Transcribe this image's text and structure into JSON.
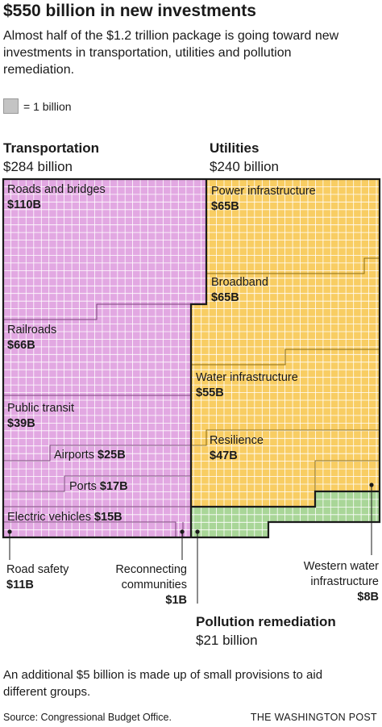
{
  "title": "$550 billion in new investments",
  "subtitle": "Almost half of the $1.2 trillion package is going toward new investments in transportation, utilities and pollution remediation.",
  "legend_text": "= 1 billion",
  "footnote": "An additional $5 billion is made up of small provisions to aid different groups.",
  "source": "Source: Congressional Budget Office.",
  "brand": "THE WASHINGTON POST",
  "colors": {
    "transportation": "#e2a8e2",
    "utilities": "#f8cd63",
    "pollution": "#a9d698",
    "grid": "#ffffff",
    "border": "#1a1a1a"
  },
  "chart_data": {
    "type": "waffle",
    "unit": "1 billion",
    "groups": [
      {
        "id": "transportation",
        "name": "Transportation",
        "total_label": "$284 billion",
        "total": 284,
        "items": [
          {
            "name": "Roads and bridges",
            "value_label": "$110B",
            "value": 110
          },
          {
            "name": "Railroads",
            "value_label": "$66B",
            "value": 66
          },
          {
            "name": "Public transit",
            "value_label": "$39B",
            "value": 39
          },
          {
            "name": "Airports",
            "value_label": "$25B",
            "value": 25
          },
          {
            "name": "Ports",
            "value_label": "$17B",
            "value": 17
          },
          {
            "name": "Electric vehicles",
            "value_label": "$15B",
            "value": 15
          },
          {
            "name": "Road safety",
            "value_label": "$11B",
            "value": 11
          },
          {
            "name": "Reconnecting communities",
            "value_label": "$1B",
            "value": 1
          }
        ]
      },
      {
        "id": "utilities",
        "name": "Utilities",
        "total_label": "$240 billion",
        "total": 240,
        "items": [
          {
            "name": "Power infrastructure",
            "value_label": "$65B",
            "value": 65
          },
          {
            "name": "Broadband",
            "value_label": "$65B",
            "value": 65
          },
          {
            "name": "Water infrastructure",
            "value_label": "$55B",
            "value": 55
          },
          {
            "name": "Resilience",
            "value_label": "$47B",
            "value": 47
          },
          {
            "name": "Western water infrastructure",
            "value_label": "$8B",
            "value": 8
          }
        ]
      },
      {
        "id": "pollution",
        "name": "Pollution remediation",
        "total_label": "$21 billion",
        "total": 21,
        "items": []
      }
    ],
    "external_labels": {
      "road_safety": {
        "name": "Road safety",
        "value": "$11B"
      },
      "reconnecting": {
        "line1": "Reconnecting",
        "line2": "communities",
        "value": "$1B"
      },
      "western_water": {
        "line1": "Western water",
        "line2": "infrastructure",
        "value": "$8B"
      }
    }
  }
}
